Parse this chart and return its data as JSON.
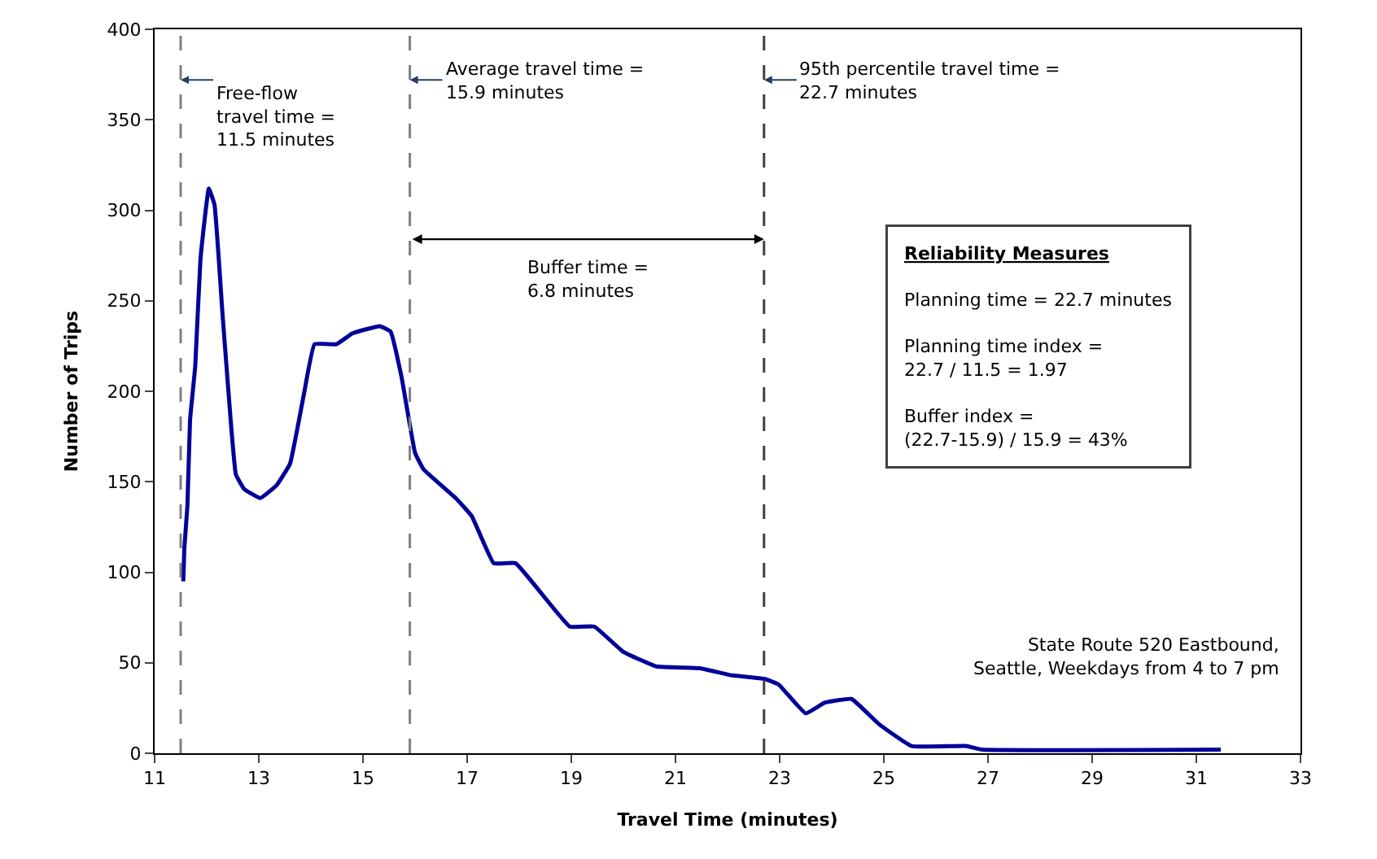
{
  "chart_data": {
    "type": "line",
    "xlabel": "Travel Time (minutes)",
    "ylabel": "Number of Trips",
    "xlim": [
      11,
      33
    ],
    "xticks": [
      11,
      13,
      15,
      17,
      19,
      21,
      23,
      25,
      27,
      29,
      31,
      33
    ],
    "ylim": [
      0,
      400
    ],
    "yticks": [
      0,
      50,
      100,
      150,
      200,
      250,
      300,
      350,
      400
    ],
    "marker": "none",
    "line_style": "solid",
    "series": [
      {
        "color": "#000099",
        "x": [
          11.55,
          11.57,
          11.63,
          11.68,
          11.78,
          11.88,
          12.04,
          12.15,
          12.3,
          12.46,
          12.56,
          12.72,
          13.03,
          13.34,
          13.6,
          13.87,
          14.07,
          14.49,
          14.8,
          15.32,
          15.53,
          15.74,
          16.0,
          16.16,
          16.78,
          17.09,
          17.51,
          17.93,
          18.97,
          19.44,
          20.0,
          20.63,
          21.47,
          22.09,
          22.72,
          22.98,
          23.5,
          23.87,
          24.38,
          24.91,
          25.53,
          26.57,
          26.89,
          31.47
        ],
        "values": [
          95,
          113,
          137,
          184,
          214,
          273,
          312,
          303,
          244,
          184,
          154,
          146,
          141,
          148,
          160,
          199,
          226,
          226,
          232,
          236,
          233,
          208,
          166,
          157,
          141,
          131,
          105,
          105,
          70,
          70,
          56,
          48,
          47,
          43,
          41,
          38,
          22,
          28,
          30,
          16,
          4,
          4,
          2,
          2
        ]
      }
    ],
    "ref_lines": [
      {
        "axis": "x",
        "value": 11.5,
        "label": "Free-flow\ntravel time =\n11.5 minutes",
        "line_style": "dashed",
        "color": "#808080"
      },
      {
        "axis": "x",
        "value": 15.9,
        "label": "Average travel time =\n15.9 minutes",
        "line_style": "dashed",
        "color": "#808080"
      },
      {
        "axis": "x",
        "value": 22.7,
        "label": "95th percentile travel time =\n22.7 minutes",
        "line_style": "dashed",
        "color": "#404040"
      }
    ],
    "annotations": [
      "Buffer time =\n6.8 minutes",
      "Reliability Measures\n\nPlanning time = 22.7 minutes\n\nPlanning time index =\n22.7 / 11.5 = 1.97\n\nBuffer index =\n(22.7-15.9) / 15.9 = 43%",
      "State Route 520 Eastbound,\nSeattle, Weekdays from 4 to 7 pm"
    ]
  }
}
